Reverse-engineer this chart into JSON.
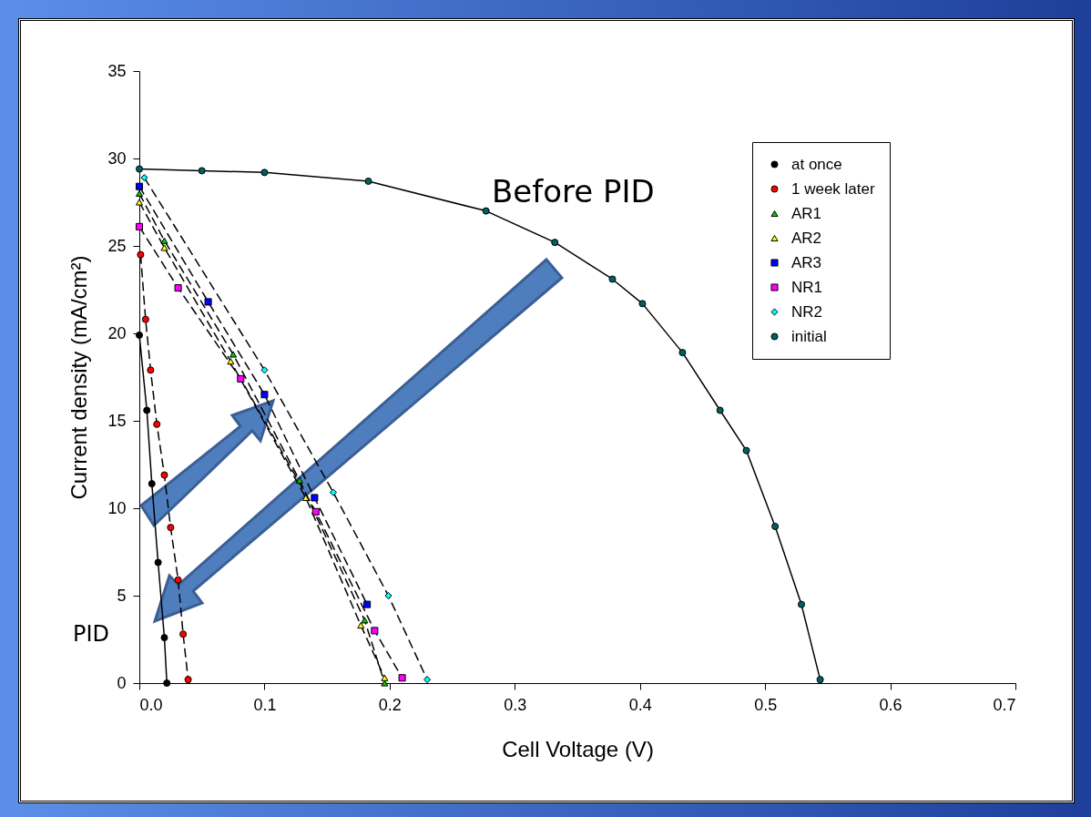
{
  "chart_data": {
    "type": "line",
    "xlabel": "Cell Voltage (V)",
    "ylabel": "Current density (mA/cm²)",
    "xlim": [
      0,
      0.7
    ],
    "ylim": [
      0,
      35
    ],
    "xticks": [
      {
        "value": 0,
        "label": "0.0"
      },
      0.1,
      0.2,
      0.3,
      0.4,
      0.5,
      0.6,
      0.7
    ],
    "yticks": [
      0,
      5,
      10,
      15,
      20,
      25,
      30,
      35
    ],
    "grid": false,
    "legend": "top right",
    "annotations": [
      "Before PID",
      "PID"
    ],
    "series": [
      {
        "name": "at once",
        "color": "#000000",
        "marker": "circle",
        "line_style": "solid",
        "x": [
          0,
          0.006,
          0.01,
          0.015,
          0.02,
          0.022
        ],
        "values": [
          19.9,
          15.6,
          11.4,
          6.9,
          2.6,
          0
        ]
      },
      {
        "name": "1 week later",
        "color": "#ff0000",
        "marker": "circle",
        "line_style": "dashed",
        "x": [
          0.001,
          0.005,
          0.009,
          0.014,
          0.02,
          0.025,
          0.031,
          0.035,
          0.039
        ],
        "values": [
          24.5,
          20.8,
          17.9,
          14.8,
          11.9,
          8.9,
          5.9,
          2.8,
          0.2
        ]
      },
      {
        "name": "AR1",
        "color": "#00cc00",
        "marker": "triangle",
        "line_style": "dashed",
        "x": [
          0,
          0.02,
          0.075,
          0.128,
          0.18,
          0.196
        ],
        "values": [
          28.0,
          25.3,
          18.8,
          11.6,
          3.6,
          0
        ]
      },
      {
        "name": "AR2",
        "color": "#ffff00",
        "marker": "triangle",
        "line_style": "dashed",
        "x": [
          0,
          0.02,
          0.073,
          0.133,
          0.177,
          0.196
        ],
        "values": [
          27.5,
          24.9,
          18.4,
          10.6,
          3.3,
          0.3
        ]
      },
      {
        "name": "AR3",
        "color": "#0000ff",
        "marker": "square",
        "line_style": "dashed",
        "x": [
          0,
          0.055,
          0.1,
          0.14,
          0.182
        ],
        "values": [
          28.4,
          21.8,
          16.5,
          10.6,
          4.5
        ]
      },
      {
        "name": "NR1",
        "color": "#ff00ff",
        "marker": "square",
        "line_style": "dashed",
        "x": [
          0,
          0.031,
          0.081,
          0.141,
          0.188,
          0.21
        ],
        "values": [
          26.1,
          22.6,
          17.4,
          9.8,
          3.0,
          0.3
        ]
      },
      {
        "name": "NR2",
        "color": "#00ffff",
        "marker": "diamond",
        "line_style": "dashed",
        "x": [
          0.004,
          0.1,
          0.155,
          0.199,
          0.23
        ],
        "values": [
          28.9,
          17.9,
          10.9,
          5.0,
          0.2
        ]
      },
      {
        "name": "initial",
        "color": "#006060",
        "marker": "circle",
        "line_style": "solid",
        "x": [
          0,
          0.05,
          0.1,
          0.183,
          0.277,
          0.332,
          0.378,
          0.402,
          0.434,
          0.464,
          0.485,
          0.508,
          0.529,
          0.544
        ],
        "values": [
          29.4,
          29.3,
          29.2,
          28.7,
          27.0,
          25.2,
          23.1,
          21.7,
          18.9,
          15.6,
          13.3,
          8.96,
          4.5,
          0.2
        ]
      }
    ]
  }
}
